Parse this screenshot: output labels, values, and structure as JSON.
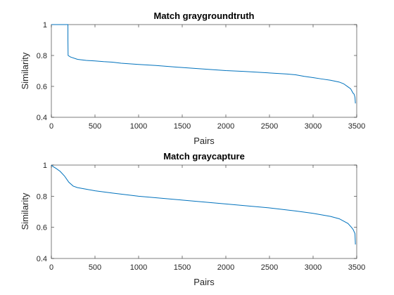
{
  "chart_data": [
    {
      "type": "line",
      "title": "Match graygroundtruth",
      "xlabel": "Pairs",
      "ylabel": "Similarity",
      "xlim": [
        0,
        3500
      ],
      "ylim": [
        0.4,
        1.0
      ],
      "xticks": [
        0,
        500,
        1000,
        1500,
        2000,
        2500,
        3000,
        3500
      ],
      "yticks": [
        0.4,
        0.6,
        0.8,
        1
      ],
      "ytick_labels": [
        "0.4",
        "0.6",
        "0.8",
        "1"
      ],
      "grid": false,
      "series": [
        {
          "color": "#0072bd",
          "x": [
            0,
            190,
            190,
            192,
            220,
            300,
            400,
            500,
            600,
            700,
            800,
            1000,
            1200,
            1500,
            1800,
            2000,
            2200,
            2500,
            2700,
            2800,
            2900,
            3000,
            3100,
            3200,
            3300,
            3350,
            3400,
            3430,
            3450,
            3460,
            3470,
            3480,
            3485
          ],
          "y": [
            1.0,
            1.0,
            0.9,
            0.8,
            0.79,
            0.775,
            0.768,
            0.765,
            0.76,
            0.757,
            0.75,
            0.742,
            0.735,
            0.722,
            0.71,
            0.702,
            0.697,
            0.687,
            0.68,
            0.675,
            0.665,
            0.657,
            0.648,
            0.64,
            0.628,
            0.617,
            0.597,
            0.585,
            0.565,
            0.555,
            0.55,
            0.53,
            0.49
          ]
        }
      ]
    },
    {
      "type": "line",
      "title": "Match graycapture",
      "xlabel": "Pairs",
      "ylabel": "Similarity",
      "xlim": [
        0,
        3500
      ],
      "ylim": [
        0.4,
        1.0
      ],
      "xticks": [
        0,
        500,
        1000,
        1500,
        2000,
        2500,
        3000,
        3500
      ],
      "yticks": [
        0.4,
        0.6,
        0.8,
        1
      ],
      "ytick_labels": [
        "0.4",
        "0.6",
        "0.8",
        "1"
      ],
      "grid": false,
      "series": [
        {
          "color": "#0072bd",
          "x": [
            0,
            20,
            50,
            100,
            150,
            200,
            250,
            300,
            400,
            500,
            700,
            1000,
            1500,
            2000,
            2500,
            2800,
            3000,
            3200,
            3300,
            3400,
            3440,
            3460,
            3480,
            3485
          ],
          "y": [
            1.0,
            0.99,
            0.98,
            0.96,
            0.93,
            0.89,
            0.865,
            0.855,
            0.845,
            0.835,
            0.82,
            0.8,
            0.775,
            0.75,
            0.725,
            0.705,
            0.69,
            0.67,
            0.655,
            0.625,
            0.6,
            0.585,
            0.56,
            0.49
          ]
        }
      ]
    }
  ]
}
